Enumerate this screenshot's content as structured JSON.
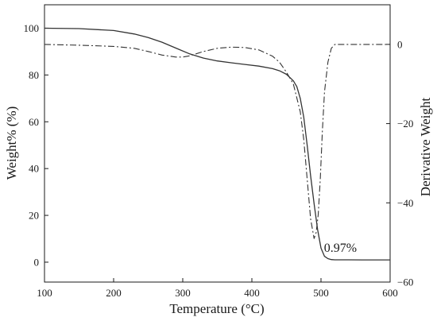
{
  "chart_data": {
    "type": "line",
    "title": "",
    "xlabel": "Temperature (°C)",
    "ylabel_left": "Weight% (%)",
    "ylabel_right": "Derivative Weight",
    "xlim": [
      100,
      600
    ],
    "ylim_left": [
      -8.5,
      110
    ],
    "ylim_right": [
      -60,
      10
    ],
    "x_ticks": [
      100,
      200,
      300,
      400,
      500,
      600
    ],
    "y_ticks_left": [
      0,
      20,
      40,
      60,
      80,
      100
    ],
    "y_ticks_right": [
      0,
      -20,
      -40,
      -60
    ],
    "grid": false,
    "legend": "none",
    "annotation": {
      "text": "0.97%",
      "x": 528,
      "y": 1
    },
    "series": [
      {
        "axis": "left",
        "style": "solid",
        "x": [
          100,
          150,
          200,
          230,
          250,
          270,
          290,
          310,
          330,
          350,
          370,
          390,
          410,
          430,
          440,
          450,
          460,
          465,
          470,
          475,
          480,
          485,
          490,
          495,
          500,
          505,
          510,
          515,
          520,
          540,
          560,
          580,
          600
        ],
        "y": [
          100,
          99.8,
          99,
          97.5,
          96,
          94,
          91.5,
          89,
          87.2,
          86,
          85.2,
          84.5,
          83.8,
          82.7,
          81.8,
          80.3,
          77.5,
          75,
          70,
          62,
          50,
          37,
          25,
          14,
          6,
          2.5,
          1.5,
          1.1,
          1,
          1,
          0.97,
          0.97,
          0.97
        ]
      },
      {
        "axis": "right",
        "style": "dashdot",
        "x": [
          100,
          150,
          200,
          230,
          250,
          270,
          290,
          300,
          310,
          330,
          350,
          370,
          390,
          410,
          430,
          440,
          450,
          460,
          470,
          475,
          480,
          485,
          490,
          493,
          496,
          499,
          502,
          505,
          510,
          515,
          520,
          525,
          540,
          560,
          600
        ],
        "y": [
          0,
          -0.2,
          -0.5,
          -1,
          -1.8,
          -2.7,
          -3.2,
          -3.2,
          -2.9,
          -1.8,
          -1,
          -0.7,
          -0.8,
          -1.4,
          -3,
          -4.5,
          -7,
          -10,
          -17,
          -24,
          -34,
          -44,
          -49,
          -47.5,
          -43,
          -34,
          -22,
          -12,
          -4.5,
          -1,
          0,
          0,
          0,
          0,
          0
        ]
      }
    ]
  }
}
